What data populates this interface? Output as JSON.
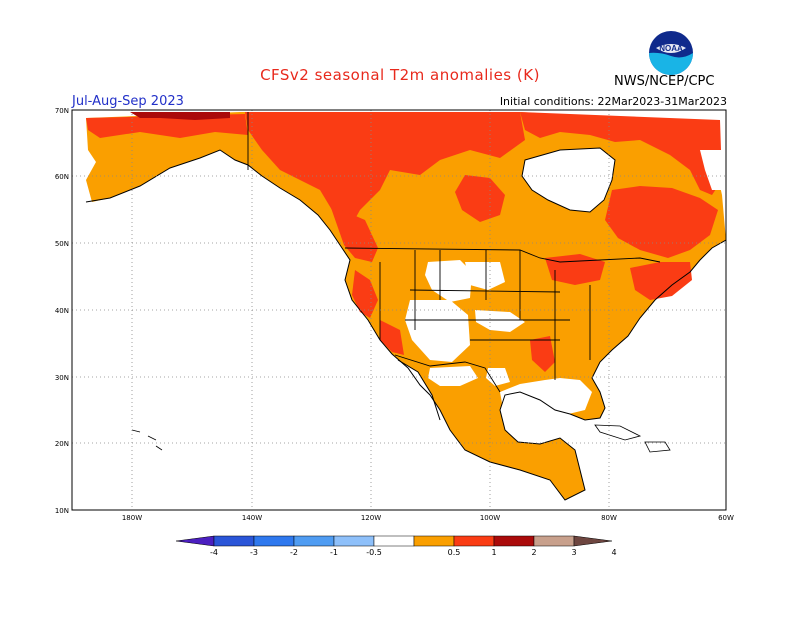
{
  "header": {
    "title": "CFSv2 seasonal T2m anomalies (K)",
    "season": "Jul-Aug-Sep 2023",
    "initial_conditions": "Initial conditions: 22Mar2023-31Mar2023",
    "agency": "NWS/NCEP/CPC",
    "logo_text": "NOAA"
  },
  "map": {
    "region": "North America",
    "lat_labels": [
      "70N",
      "60N",
      "50N",
      "40N",
      "30N",
      "20N",
      "10N"
    ],
    "lon_labels": [
      "180W",
      "140W",
      "120W",
      "100W",
      "80W",
      "60W"
    ],
    "grid": "dotted",
    "colors": {
      "anom_0_5_1": "#fa9f00",
      "anom_1_2": "#fa3c14",
      "anom_2_3": "#aa0a0a",
      "ocean": "#ffffff",
      "land_neutral": "#ffffff"
    },
    "summary": "Above-normal temperatures (0.5-1 K) over most of North America; 1-2 K over Alaska north coast, northern Canada, Quebec, Pacific Northwest, Great Lakes, New England, lower Mississippi valley; 2-3 K in northern Alaska coast; near-normal patches over central Rockies and Great Plains."
  },
  "legend": {
    "labels": [
      "-4",
      "-3",
      "-2",
      "-1",
      "-0.5",
      "0.5",
      "1",
      "2",
      "3",
      "4"
    ],
    "colors": [
      "#4b1fc0",
      "#2a55d8",
      "#2e78ee",
      "#4f9cf2",
      "#8ec0fa",
      "#ffffff",
      "#fa9f00",
      "#fa3c14",
      "#aa0a0a",
      "#c8a08c",
      "#6e4640"
    ]
  }
}
